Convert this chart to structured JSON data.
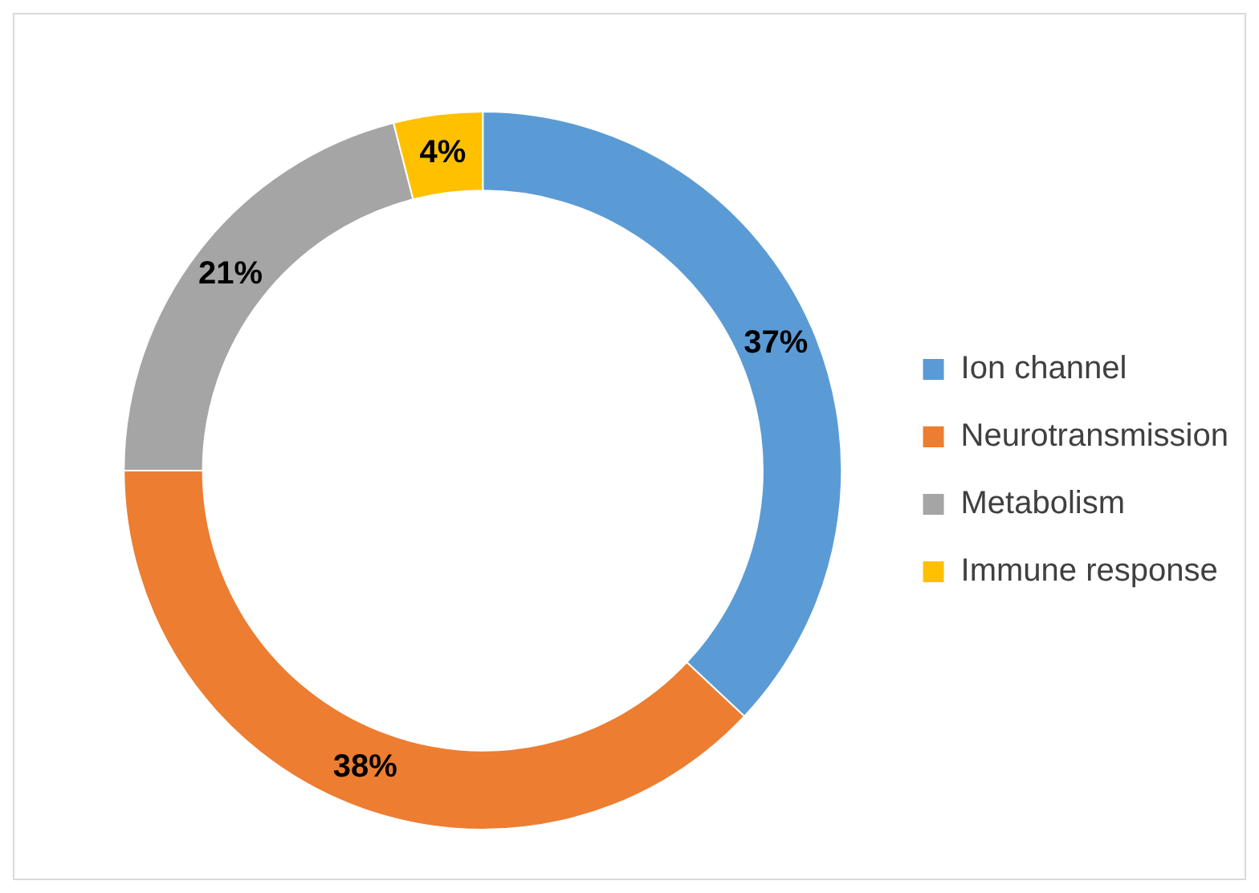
{
  "chart_data": {
    "type": "donut",
    "categories": [
      "Ion channel",
      "Neurotransmission",
      "Metabolism",
      "Immune response"
    ],
    "values": [
      37,
      38,
      21,
      4
    ],
    "colors": [
      "#5b9bd5",
      "#ed7d31",
      "#a5a5a5",
      "#ffc000"
    ],
    "value_labels": [
      "37%",
      "38%",
      "21%",
      "4%"
    ],
    "legend": "right"
  }
}
